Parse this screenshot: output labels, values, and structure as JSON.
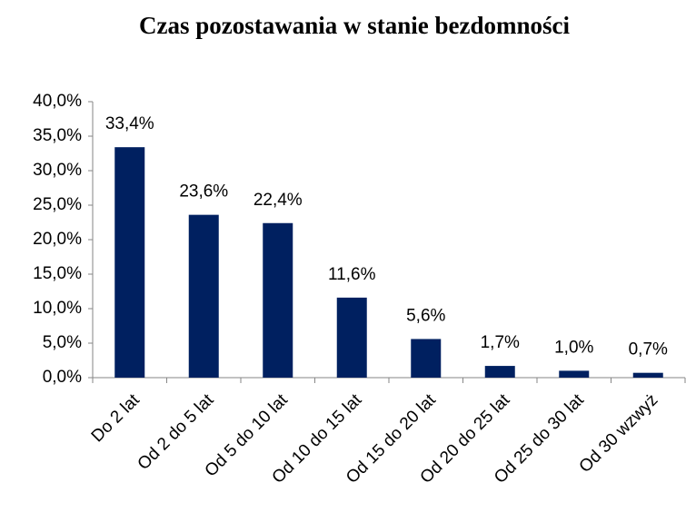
{
  "chart_data": {
    "type": "bar",
    "title": "Czas pozostawania w stanie bezdomności",
    "categories": [
      "Do 2 lat",
      "Od 2 do 5 lat",
      "Od 5 do 10 lat",
      "Od 10 do 15 lat",
      "Od 15 do 20 lat",
      "Od 20 do 25 lat",
      "Od 25 do 30 lat",
      "Od 30 wzwyż"
    ],
    "values": [
      33.4,
      23.6,
      22.4,
      11.6,
      5.6,
      1.7,
      1.0,
      0.7
    ],
    "value_labels": [
      "33,4%",
      "23,6%",
      "22,4%",
      "11,6%",
      "5,6%",
      "1,7%",
      "1,0%",
      "0,7%"
    ],
    "color": "#002060",
    "ylim": [
      0,
      40
    ],
    "yticks": [
      {
        "value": 0,
        "label": "0,0%"
      },
      {
        "value": 5,
        "label": "5,0%"
      },
      {
        "value": 10,
        "label": "10,0%"
      },
      {
        "value": 15,
        "label": "15,0%"
      },
      {
        "value": 20,
        "label": "20,0%"
      },
      {
        "value": 25,
        "label": "25,0%"
      },
      {
        "value": 30,
        "label": "30,0%"
      },
      {
        "value": 35,
        "label": "35,0%"
      },
      {
        "value": 40,
        "label": "40,0%"
      }
    ],
    "grid": false
  }
}
